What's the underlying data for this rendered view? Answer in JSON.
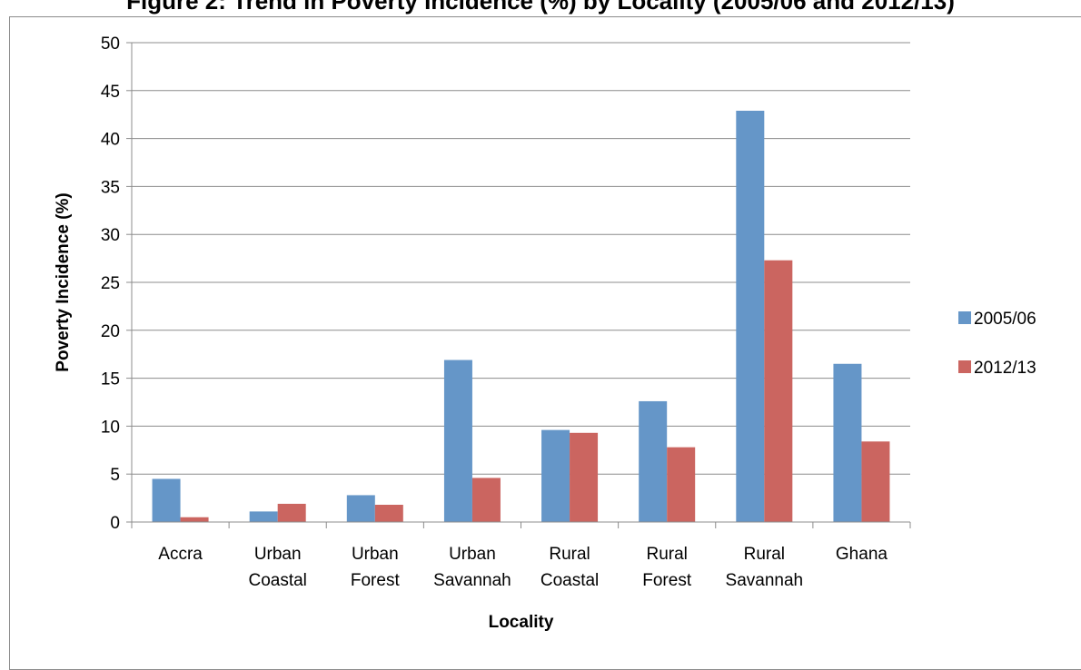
{
  "chart_data": {
    "type": "bar",
    "title": "Figure 2: Trend in Poverty Incidence (%) by Locality (2005/06 and 2012/13)",
    "xlabel": "Locality",
    "ylabel": "Poverty Incidence (%)",
    "ylim": [
      0,
      50
    ],
    "yticks": [
      0,
      5,
      10,
      15,
      20,
      25,
      30,
      35,
      40,
      45,
      50
    ],
    "grid": true,
    "legend_position": "right",
    "categories": [
      [
        "Accra"
      ],
      [
        "Urban",
        "Coastal"
      ],
      [
        "Urban",
        "Forest"
      ],
      [
        "Urban",
        "Savannah"
      ],
      [
        "Rural",
        "Coastal"
      ],
      [
        "Rural",
        "Forest"
      ],
      [
        "Rural",
        "Savannah"
      ],
      [
        "Ghana"
      ]
    ],
    "series": [
      {
        "name": "2005/06",
        "color": "#6596c8",
        "values": [
          4.5,
          1.1,
          2.8,
          16.9,
          9.6,
          12.6,
          42.9,
          16.5
        ]
      },
      {
        "name": "2012/13",
        "color": "#cb6560",
        "values": [
          0.5,
          1.9,
          1.8,
          4.6,
          9.3,
          7.8,
          27.3,
          8.4
        ]
      }
    ]
  }
}
